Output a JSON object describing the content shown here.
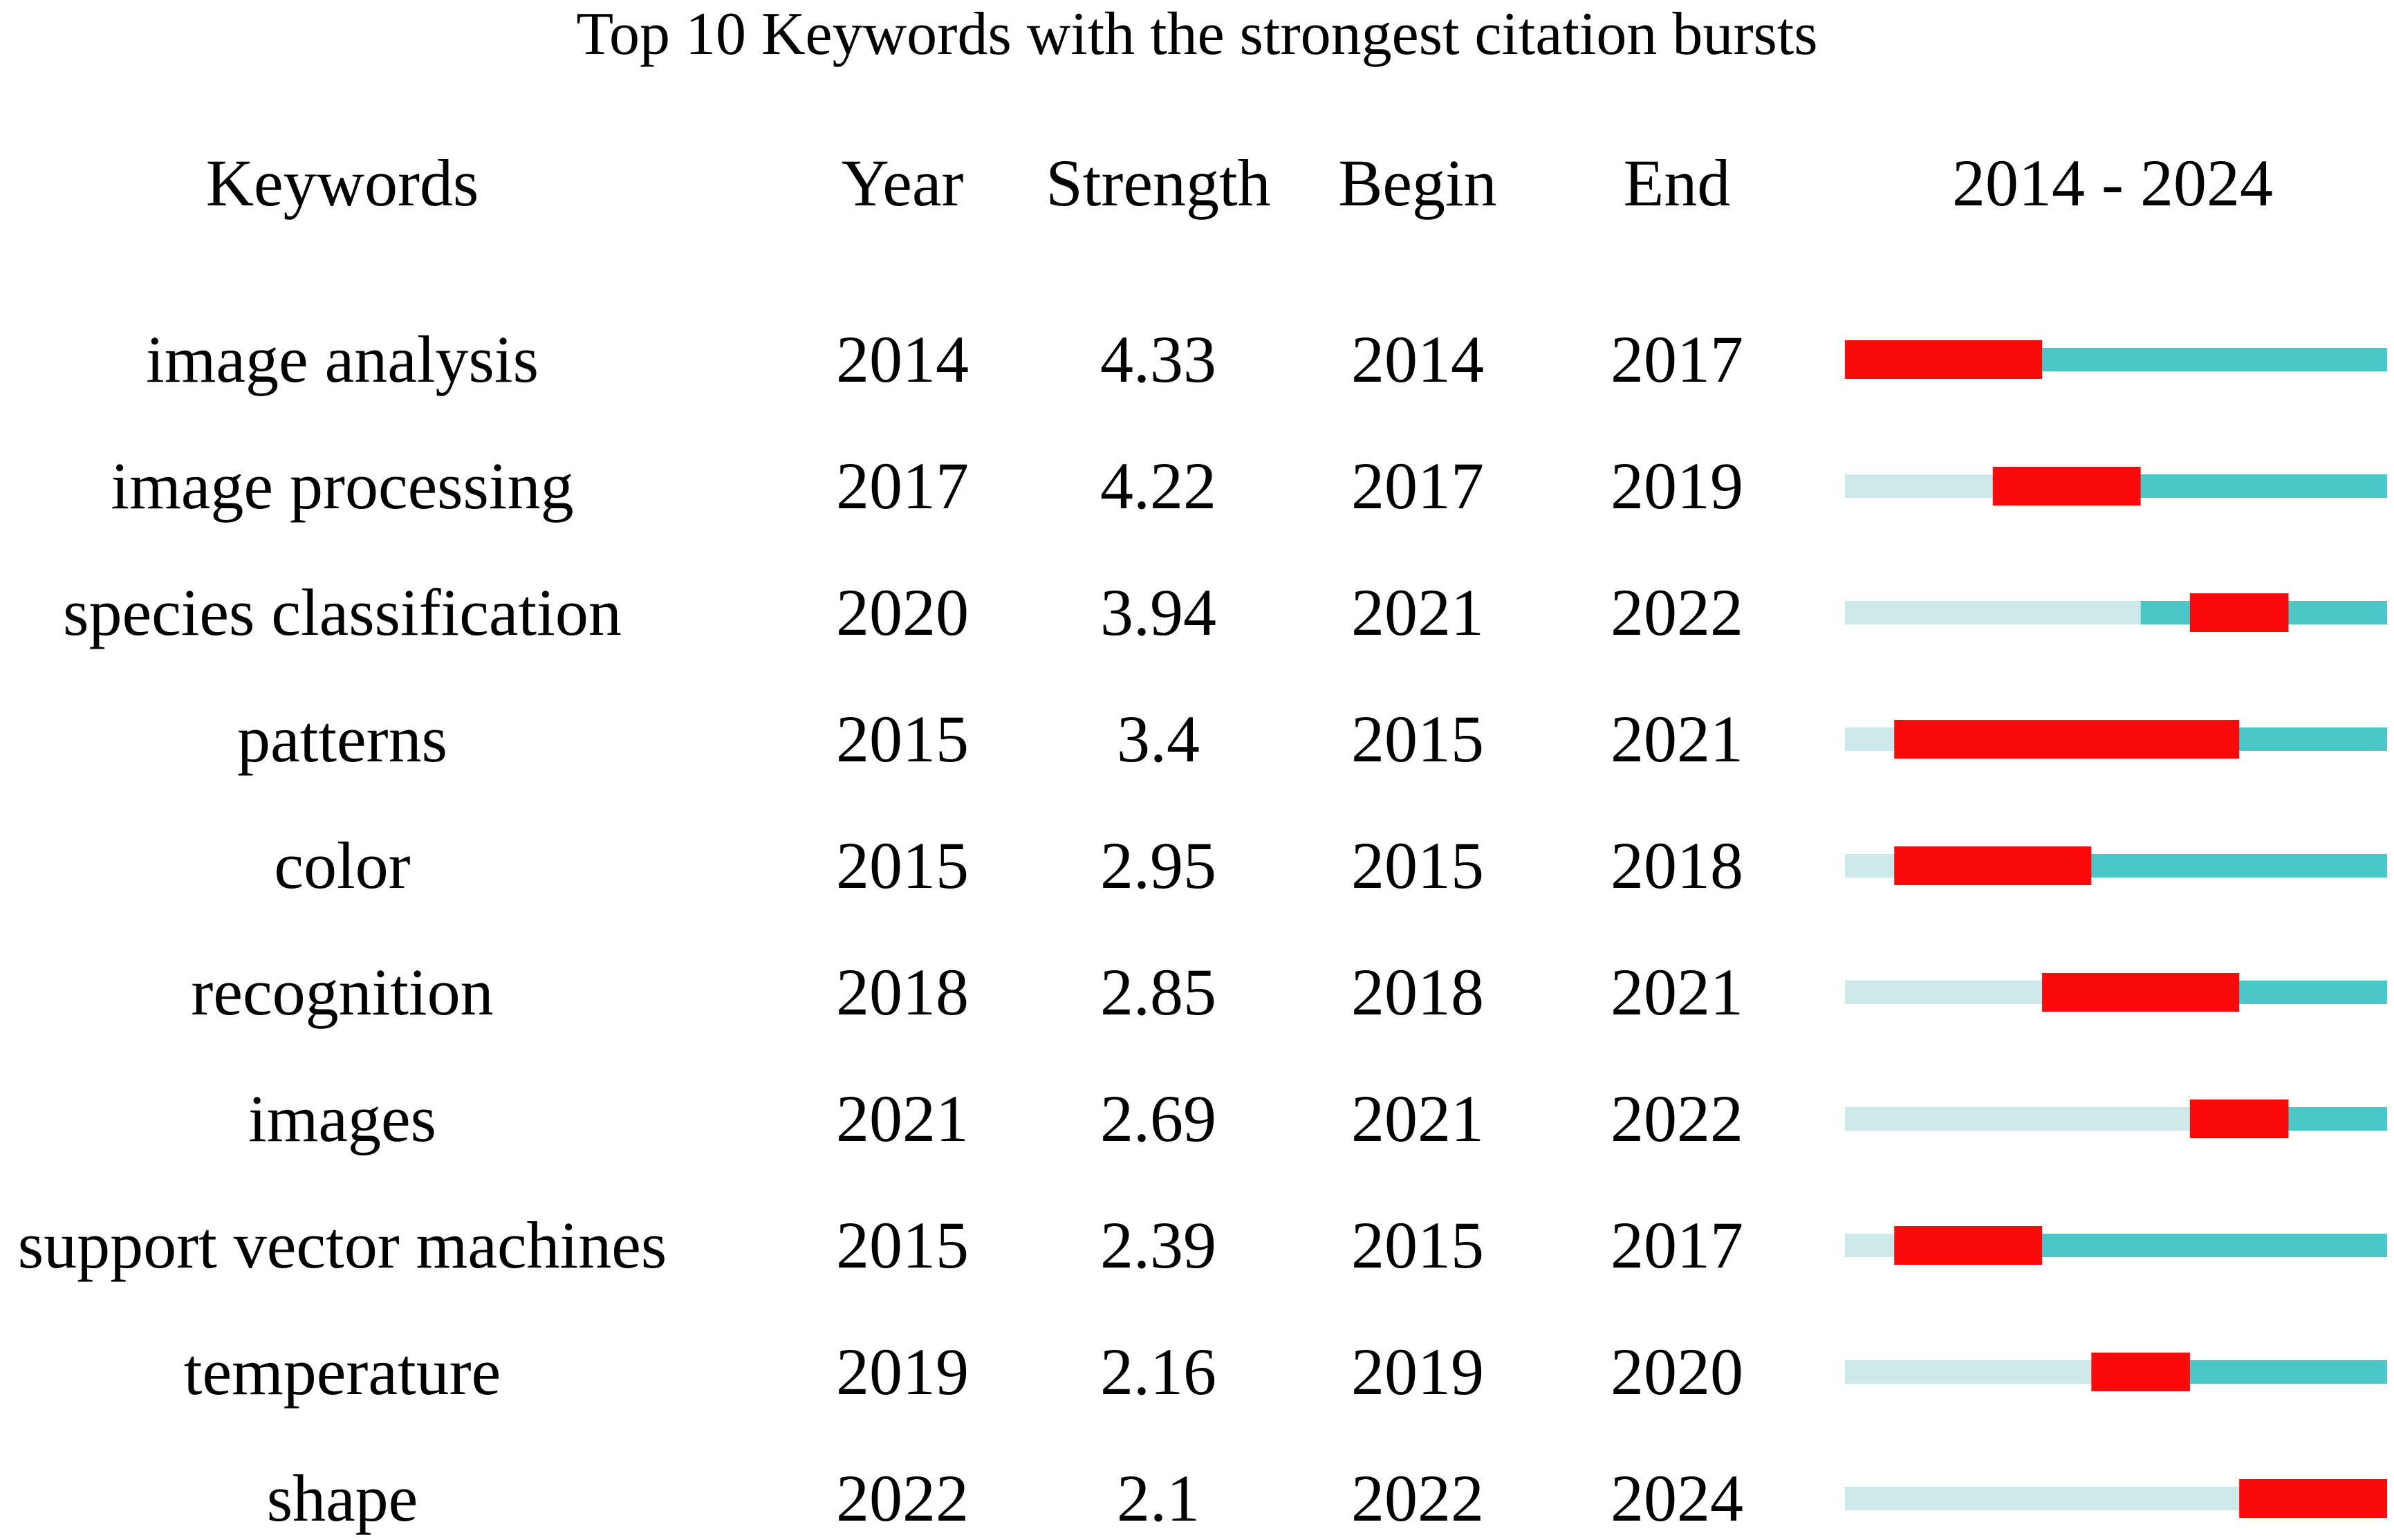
{
  "chart_data": {
    "type": "table",
    "title": "Top 10 Keywords with the strongest citation bursts",
    "columns": [
      "Keywords",
      "Year",
      "Strength",
      "Begin",
      "End",
      "2014 - 2024"
    ],
    "timeline": {
      "start": 2014,
      "end": 2024,
      "colors": {
        "before_first_year": "#cde9ea",
        "after_first_year": "#4cc7c8",
        "burst": "#fa0a0a"
      }
    },
    "rows": [
      {
        "keyword": "image analysis",
        "year": "2014",
        "strength": "4.33",
        "begin": "2014",
        "end": "2017"
      },
      {
        "keyword": "image processing",
        "year": "2017",
        "strength": "4.22",
        "begin": "2017",
        "end": "2019"
      },
      {
        "keyword": "species classification",
        "year": "2020",
        "strength": "3.94",
        "begin": "2021",
        "end": "2022"
      },
      {
        "keyword": "patterns",
        "year": "2015",
        "strength": "3.4",
        "begin": "2015",
        "end": "2021"
      },
      {
        "keyword": "color",
        "year": "2015",
        "strength": "2.95",
        "begin": "2015",
        "end": "2018"
      },
      {
        "keyword": "recognition",
        "year": "2018",
        "strength": "2.85",
        "begin": "2018",
        "end": "2021"
      },
      {
        "keyword": "images",
        "year": "2021",
        "strength": "2.69",
        "begin": "2021",
        "end": "2022"
      },
      {
        "keyword": "support vector machines",
        "year": "2015",
        "strength": "2.39",
        "begin": "2015",
        "end": "2017"
      },
      {
        "keyword": "temperature",
        "year": "2019",
        "strength": "2.16",
        "begin": "2019",
        "end": "2020"
      },
      {
        "keyword": "shape",
        "year": "2022",
        "strength": "2.1",
        "begin": "2022",
        "end": "2024"
      }
    ]
  }
}
